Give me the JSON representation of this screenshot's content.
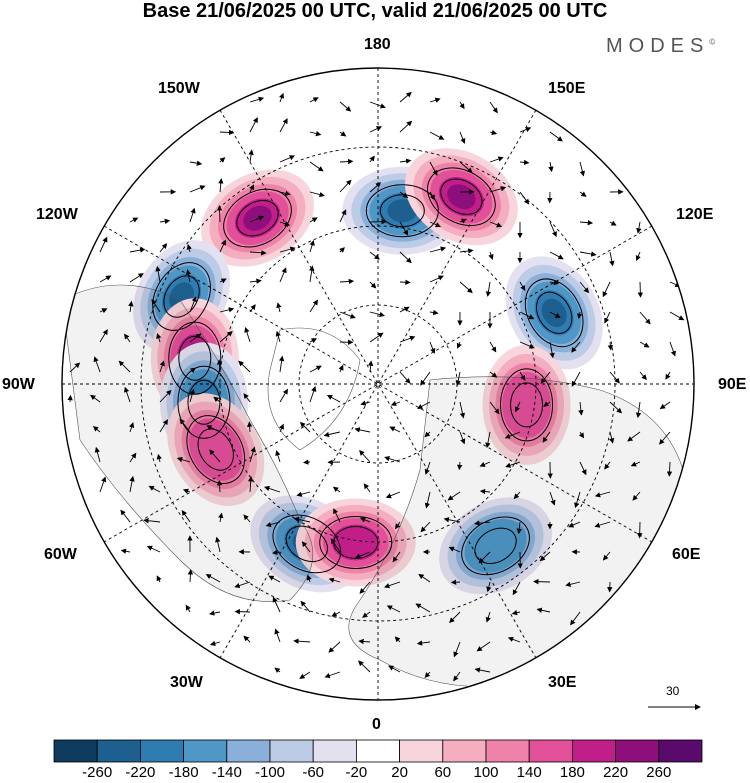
{
  "title": "Base 21/06/2025 00 UTC, valid 21/06/2025 00 UTC",
  "logo": {
    "text": "MODES",
    "mark": "©"
  },
  "projection": "north-polar-stereographic",
  "longitude_labels": {
    "top": "180",
    "top_left": "150W",
    "top_right": "150E",
    "upper_left": "120W",
    "upper_right": "120E",
    "left": "90W",
    "right": "90E",
    "lower_left": "60W",
    "lower_right": "60E",
    "bottom_left": "30W",
    "bottom_right": "30E",
    "bottom": "0"
  },
  "vector_reference": {
    "value": "30"
  },
  "colorbar": {
    "labels": [
      "-260",
      "-220",
      "-180",
      "-140",
      "-100",
      "-60",
      "-20",
      "20",
      "60",
      "100",
      "140",
      "180",
      "220",
      "260"
    ],
    "colors": [
      "#0f3b5e",
      "#1d5f8f",
      "#2f7cb3",
      "#4f97c6",
      "#8aafd8",
      "#bccbe6",
      "#e3e0f0",
      "#ffffff",
      "#f8d5dc",
      "#f4aec0",
      "#ee82a8",
      "#e2509a",
      "#c21e8a",
      "#8e0f7c",
      "#5a0a6c"
    ]
  },
  "anomaly_centers": [
    {
      "sign": "positive",
      "strength": "strong",
      "lon_label": "150W",
      "value": 220
    },
    {
      "sign": "negative",
      "strength": "strong",
      "lon_label": "180",
      "value": -220
    },
    {
      "sign": "positive",
      "strength": "strong",
      "lon_label": "150E",
      "value": 220
    },
    {
      "sign": "negative",
      "strength": "strong",
      "lon_label": "120E",
      "value": -220
    },
    {
      "sign": "negative",
      "strength": "strong",
      "lon_label": "120W",
      "value": -220
    },
    {
      "sign": "positive",
      "strength": "strong",
      "lon_label": "90W",
      "value": 220
    },
    {
      "sign": "negative",
      "strength": "moderate",
      "lon_label": "90W",
      "value": -180
    },
    {
      "sign": "positive",
      "strength": "moderate",
      "lon_label": "60W",
      "value": 140
    },
    {
      "sign": "negative",
      "strength": "strong",
      "lon_label": "30W",
      "value": -260
    },
    {
      "sign": "positive",
      "strength": "strong",
      "lon_label": "0",
      "value": 180
    },
    {
      "sign": "negative",
      "strength": "moderate",
      "lon_label": "30E",
      "value": -140
    },
    {
      "sign": "positive",
      "strength": "moderate",
      "lon_label": "90E",
      "value": 140
    }
  ]
}
